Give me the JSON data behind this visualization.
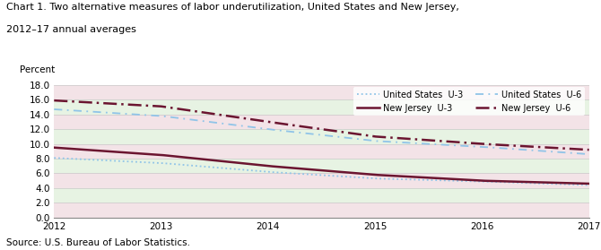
{
  "title_line1": "Chart 1. Two alternative measures of labor underutilization, United States and New Jersey,",
  "title_line2": "2012–17 annual averages",
  "ylabel": "Percent",
  "source": "Source: U.S. Bureau of Labor Statistics.",
  "years": [
    2012,
    2013,
    2014,
    2015,
    2016,
    2017
  ],
  "us_u3": [
    8.1,
    7.4,
    6.2,
    5.3,
    4.9,
    4.4
  ],
  "us_u6": [
    14.7,
    13.8,
    12.0,
    10.4,
    9.6,
    8.6
  ],
  "nj_u3": [
    9.5,
    8.5,
    7.0,
    5.8,
    5.0,
    4.6
  ],
  "nj_u6": [
    15.9,
    15.1,
    13.0,
    11.0,
    10.0,
    9.2
  ],
  "ylim": [
    0.0,
    18.0
  ],
  "yticks": [
    0.0,
    2.0,
    4.0,
    6.0,
    8.0,
    10.0,
    12.0,
    14.0,
    16.0,
    18.0
  ],
  "color_us": "#90c4e8",
  "color_nj": "#6b1530",
  "gridcolors": [
    "#e8c8d0",
    "#d0e8c8",
    "#e8c8d0",
    "#d0e8c8",
    "#e8c8d0",
    "#d0e8c8",
    "#e8c8d0",
    "#d0e8c8",
    "#e8c8d0"
  ],
  "bg_color": "#ffffff",
  "legend_bg": "#ffffff"
}
